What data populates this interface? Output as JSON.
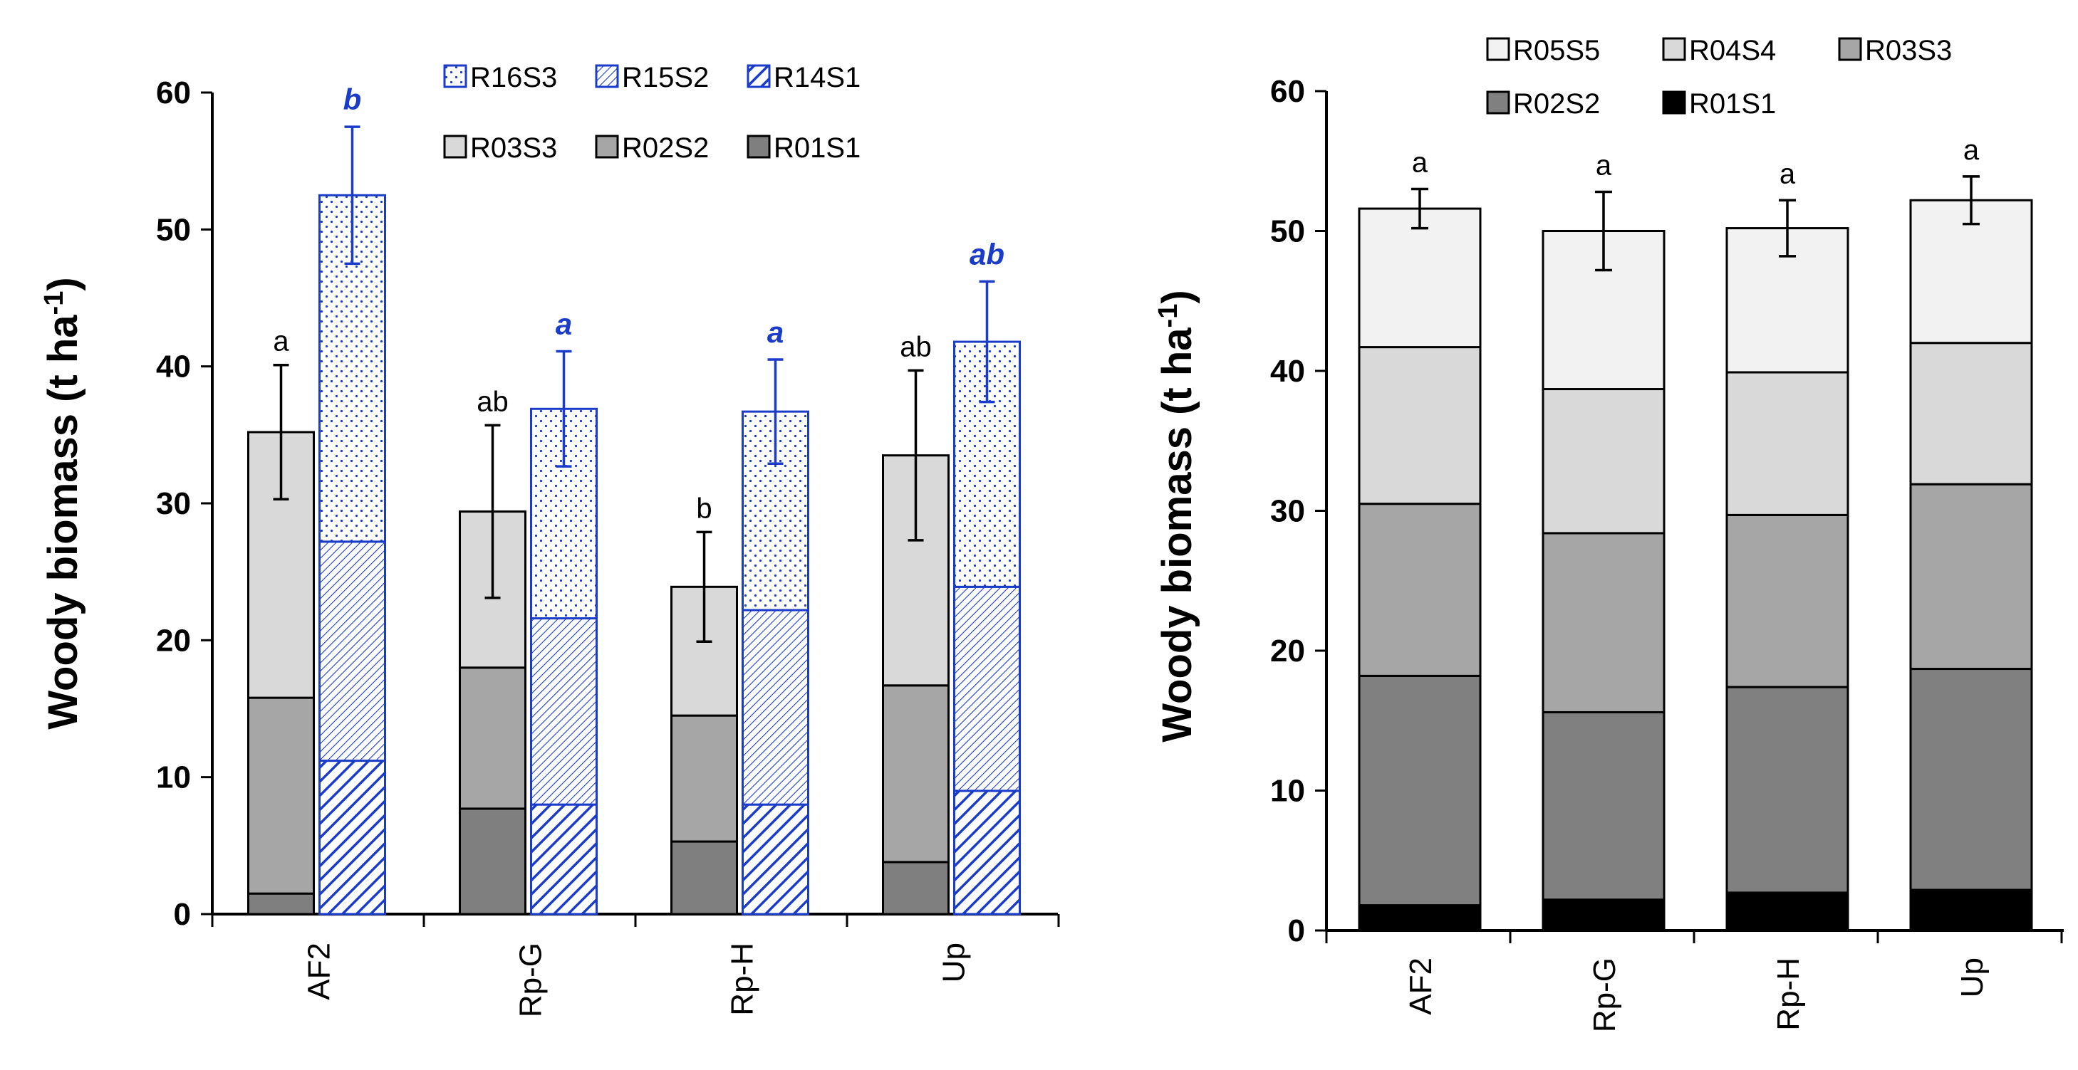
{
  "colors": {
    "blue": "#1a3cc8",
    "r01": "#7f7f7f",
    "r02": "#a6a6a6",
    "r03": "#d9d9d9",
    "right_r01": "#000000",
    "right_r02": "#808080",
    "right_r03": "#a6a6a6",
    "right_r04": "#d9d9d9",
    "right_r05": "#f2f2f2"
  },
  "chart_data": [
    {
      "type": "bar",
      "stacked": true,
      "title": "",
      "ylabel": "Woody biomass (t ha-1)",
      "ylabel_parts": {
        "main": "Woody biomass (t ha",
        "sup": "-1",
        "end": ")"
      },
      "ylim": [
        0,
        60
      ],
      "yticks": [
        0,
        10,
        20,
        30,
        40,
        50,
        60
      ],
      "yticks_labels": [
        "0",
        "10",
        "20",
        "30",
        "40",
        "50",
        "60"
      ],
      "categories": [
        "AF2",
        "Rp-G",
        "Rp-H",
        "Up"
      ],
      "legend": [
        {
          "label": "R16S3",
          "key": "r16"
        },
        {
          "label": "R15S2",
          "key": "r15"
        },
        {
          "label": "R14S1",
          "key": "r14"
        },
        {
          "label": "R03S3",
          "key": "r03"
        },
        {
          "label": "R02S2",
          "key": "r02"
        },
        {
          "label": "R01S1",
          "key": "r01"
        }
      ],
      "gray_stack": {
        "series": [
          {
            "name": "R01S1",
            "key": "r01",
            "values": [
              1.5,
              7.7,
              5.3,
              3.8
            ]
          },
          {
            "name": "R02S2",
            "key": "r02",
            "values": [
              14.3,
              10.3,
              9.2,
              12.9
            ]
          },
          {
            "name": "R03S3",
            "key": "r03",
            "values": [
              19.4,
              11.4,
              9.4,
              16.8
            ]
          }
        ],
        "totals": [
          35.2,
          29.4,
          23.9,
          33.5
        ],
        "error": [
          4.9,
          6.3,
          4.0,
          6.2
        ],
        "letters": [
          "a",
          "ab",
          "b",
          "ab"
        ]
      },
      "blue_stack": {
        "series": [
          {
            "name": "R14S1",
            "key": "r14",
            "values": [
              11.2,
              8.0,
              8.0,
              9.0
            ]
          },
          {
            "name": "R15S2",
            "key": "r15",
            "values": [
              16.0,
              13.6,
              14.2,
              14.9
            ]
          },
          {
            "name": "R16S3",
            "key": "r16",
            "values": [
              25.3,
              15.3,
              14.5,
              17.9
            ]
          }
        ],
        "totals": [
          52.5,
          36.9,
          36.7,
          41.8
        ],
        "error": [
          5.0,
          4.2,
          3.8,
          4.4
        ],
        "letters": [
          "b",
          "a",
          "a",
          "ab"
        ]
      }
    },
    {
      "type": "bar",
      "stacked": true,
      "title": "",
      "ylabel": "Woody biomass (t ha-1)",
      "ylabel_parts": {
        "main": "Woody biomass (t ha",
        "sup": "-1",
        "end": ")"
      },
      "ylim": [
        0,
        60
      ],
      "yticks": [
        0,
        10,
        20,
        30,
        40,
        50,
        60
      ],
      "yticks_labels": [
        "0",
        "10",
        "20",
        "30",
        "40",
        "50",
        "60"
      ],
      "categories": [
        "AF2",
        "Rp-G",
        "Rp-H",
        "Up"
      ],
      "legend": [
        {
          "label": "R05S5",
          "key": "right_r05"
        },
        {
          "label": "R04S4",
          "key": "right_r04"
        },
        {
          "label": "R03S3",
          "key": "right_r03"
        },
        {
          "label": "R02S2",
          "key": "right_r02"
        },
        {
          "label": "R01S1",
          "key": "right_r01"
        }
      ],
      "series": [
        {
          "name": "R01S1",
          "key": "right_r01",
          "values": [
            1.8,
            2.2,
            2.7,
            2.9
          ]
        },
        {
          "name": "R02S2",
          "key": "right_r02",
          "values": [
            16.4,
            13.4,
            14.7,
            15.8
          ]
        },
        {
          "name": "R03S3",
          "key": "right_r03",
          "values": [
            12.3,
            12.8,
            12.3,
            13.2
          ]
        },
        {
          "name": "R04S4",
          "key": "right_r04",
          "values": [
            11.2,
            10.3,
            10.2,
            10.1
          ]
        },
        {
          "name": "R05S5",
          "key": "right_r05",
          "values": [
            9.9,
            11.3,
            10.3,
            10.2
          ]
        }
      ],
      "totals": [
        51.6,
        50.0,
        50.2,
        52.2
      ],
      "error": [
        1.4,
        2.8,
        2.0,
        1.7
      ],
      "letters": [
        "a",
        "a",
        "a",
        "a"
      ]
    }
  ]
}
